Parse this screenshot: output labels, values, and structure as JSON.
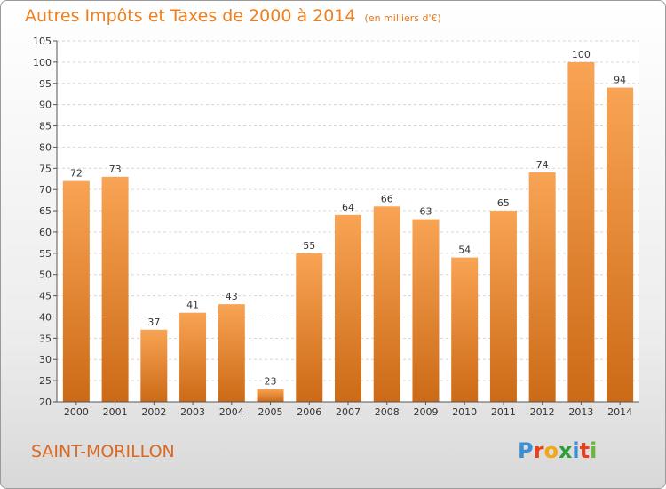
{
  "title": "Autres Impôts et Taxes de 2000 à 2014",
  "subtitle": "(en milliers d'€)",
  "city": "SAINT-MORILLON",
  "logo": "Proxiti",
  "colors": {
    "bar_light": "#f8a454",
    "bar_dark": "#cc6a16",
    "title": "#f07f1c",
    "city": "#d86a24"
  },
  "chart_data": {
    "type": "bar",
    "title": "Autres Impôts et Taxes de 2000 à 2014",
    "subtitle": "(en milliers d'€)",
    "categories": [
      "2000",
      "2001",
      "2002",
      "2003",
      "2004",
      "2005",
      "2006",
      "2007",
      "2008",
      "2009",
      "2010",
      "2011",
      "2012",
      "2013",
      "2014"
    ],
    "values": [
      72,
      73,
      37,
      41,
      43,
      23,
      55,
      64,
      66,
      63,
      54,
      65,
      74,
      100,
      94
    ],
    "ylim": [
      20,
      105
    ],
    "yticks": [
      20,
      25,
      30,
      35,
      40,
      45,
      50,
      55,
      60,
      65,
      70,
      75,
      80,
      85,
      90,
      95,
      100,
      105
    ],
    "grid": true,
    "data_labels": true
  }
}
